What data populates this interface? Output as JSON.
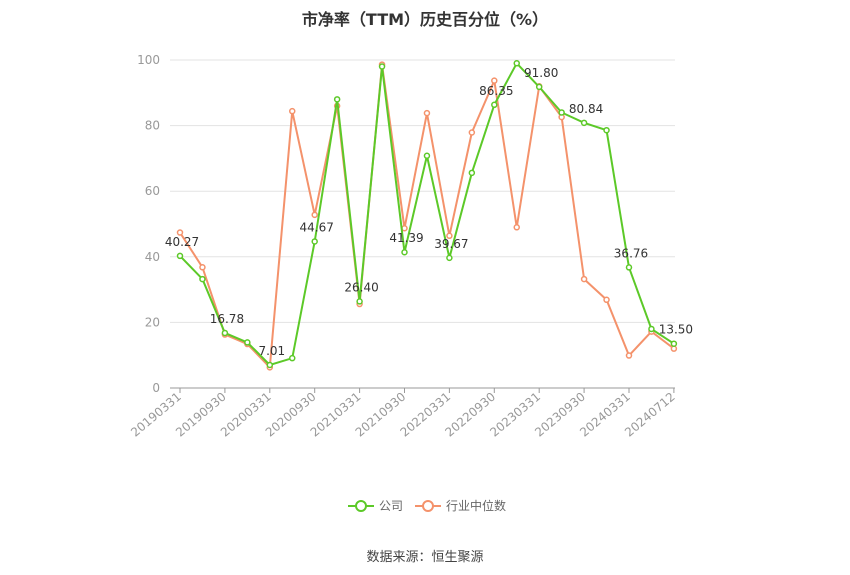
{
  "chart_title": "市净率（TTM）历史百分位（%）",
  "source_text": "数据来源：恒生聚源",
  "chart_data": {
    "type": "line",
    "title": "市净率（TTM）历史百分位（%）",
    "ylim": [
      0,
      100
    ],
    "yticks": [
      0,
      20,
      40,
      60,
      80,
      100
    ],
    "grid": true,
    "legend_position": "bottom",
    "x_labels": [
      "20190331",
      "20190930",
      "20200331",
      "20200930",
      "20210331",
      "20210930",
      "20220331",
      "20220930",
      "20230331",
      "20230930",
      "20240331",
      "20240712"
    ],
    "series": [
      {
        "name": "公司",
        "color": "#5cc928",
        "values": [
          40.27,
          33.2,
          16.78,
          13.9,
          7.01,
          9.1,
          44.67,
          88.0,
          26.4,
          98.0,
          41.39,
          70.8,
          39.67,
          65.6,
          86.35,
          99.0,
          91.8,
          84.0,
          80.84,
          78.6,
          36.76,
          18.0,
          13.5
        ]
      },
      {
        "name": "行业中位数",
        "color": "#f4926b",
        "values": [
          47.4,
          36.8,
          16.3,
          13.4,
          6.3,
          84.4,
          52.8,
          86.0,
          25.6,
          98.6,
          48.7,
          83.8,
          46.4,
          77.9,
          93.7,
          49.0,
          92.0,
          82.6,
          33.2,
          26.9,
          9.9,
          17.2,
          12.0
        ]
      }
    ],
    "data_labels": [
      {
        "index": 0,
        "text": "40.27"
      },
      {
        "index": 2,
        "text": "16.78"
      },
      {
        "index": 4,
        "text": "7.01"
      },
      {
        "index": 6,
        "text": "44.67"
      },
      {
        "index": 8,
        "text": "26.40"
      },
      {
        "index": 10,
        "text": "41.39"
      },
      {
        "index": 12,
        "text": "39.67"
      },
      {
        "index": 14,
        "text": "86.35"
      },
      {
        "index": 16,
        "text": "91.80"
      },
      {
        "index": 18,
        "text": "80.84"
      },
      {
        "index": 20,
        "text": "36.76"
      },
      {
        "index": 22,
        "text": "13.50"
      }
    ]
  }
}
